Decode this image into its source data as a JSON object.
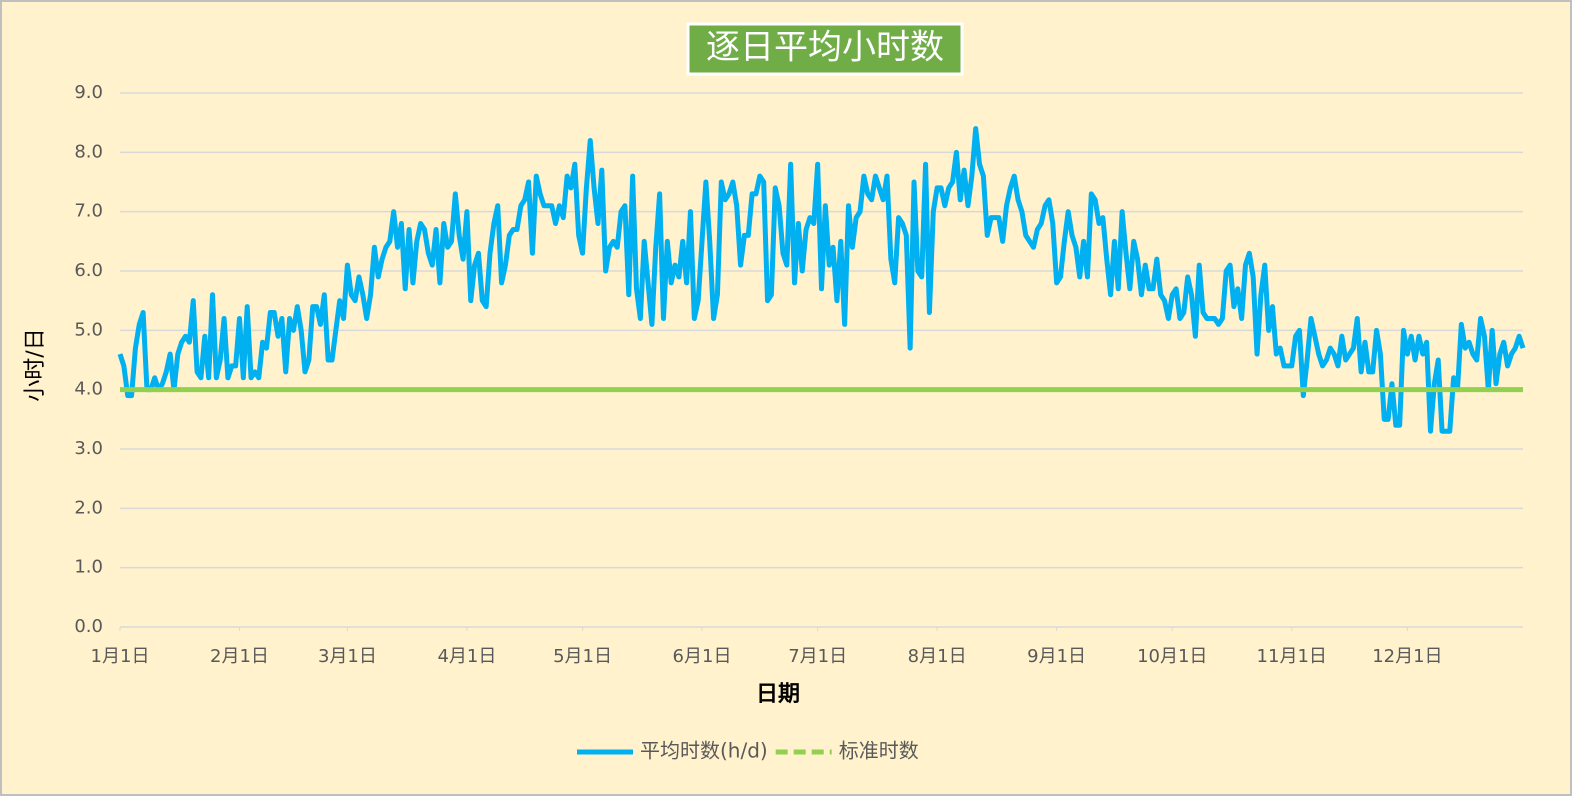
{
  "chart_data": {
    "type": "line",
    "title": "逐日平均小时数",
    "xlabel": "日期",
    "ylabel": "小时/日",
    "background": "#fff2cc",
    "grid": true,
    "legend": "bottom",
    "xlim": [
      1,
      365
    ],
    "xticks": [
      {
        "value": 1,
        "label": "1月1日"
      },
      {
        "value": 32,
        "label": "2月1日"
      },
      {
        "value": 60,
        "label": "3月1日"
      },
      {
        "value": 91,
        "label": "4月1日"
      },
      {
        "value": 121,
        "label": "5月1日"
      },
      {
        "value": 152,
        "label": "6月1日"
      },
      {
        "value": 182,
        "label": "7月1日"
      },
      {
        "value": 213,
        "label": "8月1日"
      },
      {
        "value": 244,
        "label": "9月1日"
      },
      {
        "value": 274,
        "label": "10月1日"
      },
      {
        "value": 305,
        "label": "11月1日"
      },
      {
        "value": 335,
        "label": "12月1日"
      }
    ],
    "ylim": [
      0,
      9
    ],
    "yticks": [
      {
        "value": 0,
        "label": "0.0"
      },
      {
        "value": 1,
        "label": "1.0"
      },
      {
        "value": 2,
        "label": "2.0"
      },
      {
        "value": 3,
        "label": "3.0"
      },
      {
        "value": 4,
        "label": "4.0"
      },
      {
        "value": 5,
        "label": "5.0"
      },
      {
        "value": 6,
        "label": "6.0"
      },
      {
        "value": 7,
        "label": "7.0"
      },
      {
        "value": 8,
        "label": "8.0"
      },
      {
        "value": 9,
        "label": "9.0"
      }
    ],
    "series": [
      {
        "name": "平均时数(h/d)",
        "color": "#00b0f0",
        "dash": false,
        "x": [
          1,
          2,
          3,
          4,
          5,
          6,
          7,
          8,
          9,
          10,
          11,
          12,
          13,
          14,
          15,
          16,
          17,
          18,
          19,
          20,
          21,
          22,
          23,
          24,
          25,
          26,
          27,
          28,
          29,
          30,
          31,
          32,
          33,
          34,
          35,
          36,
          37,
          38,
          39,
          40,
          41,
          42,
          43,
          44,
          45,
          46,
          47,
          48,
          49,
          50,
          51,
          52,
          53,
          54,
          55,
          56,
          57,
          58,
          59,
          60,
          61,
          62,
          63,
          64,
          65,
          66,
          67,
          68,
          69,
          70,
          71,
          72,
          73,
          74,
          75,
          76,
          77,
          78,
          79,
          80,
          81,
          82,
          83,
          84,
          85,
          86,
          87,
          88,
          89,
          90,
          91,
          92,
          93,
          94,
          95,
          96,
          97,
          98,
          99,
          100,
          101,
          102,
          103,
          104,
          105,
          106,
          107,
          108,
          109,
          110,
          111,
          112,
          113,
          114,
          115,
          116,
          117,
          118,
          119,
          120,
          121,
          122,
          123,
          124,
          125,
          126,
          127,
          128,
          129,
          130,
          131,
          132,
          133,
          134,
          135,
          136,
          137,
          138,
          139,
          140,
          141,
          142,
          143,
          144,
          145,
          146,
          147,
          148,
          149,
          150,
          151,
          152,
          153,
          154,
          155,
          156,
          157,
          158,
          159,
          160,
          161,
          162,
          163,
          164,
          165,
          166,
          167,
          168,
          169,
          170,
          171,
          172,
          173,
          174,
          175,
          176,
          177,
          178,
          179,
          180,
          181,
          182,
          183,
          184,
          185,
          186,
          187,
          188,
          189,
          190,
          191,
          192,
          193,
          194,
          195,
          196,
          197,
          198,
          199,
          200,
          201,
          202,
          203,
          204,
          205,
          206,
          207,
          208,
          209,
          210,
          211,
          212,
          213,
          214,
          215,
          216,
          217,
          218,
          219,
          220,
          221,
          222,
          223,
          224,
          225,
          226,
          227,
          228,
          229,
          230,
          231,
          232,
          233,
          234,
          235,
          236,
          237,
          238,
          239,
          240,
          241,
          242,
          243,
          244,
          245,
          246,
          247,
          248,
          249,
          250,
          251,
          252,
          253,
          254,
          255,
          256,
          257,
          258,
          259,
          260,
          261,
          262,
          263,
          264,
          265,
          266,
          267,
          268,
          269,
          270,
          271,
          272,
          273,
          274,
          275,
          276,
          277,
          278,
          279,
          280,
          281,
          282,
          283,
          284,
          285,
          286,
          287,
          288,
          289,
          290,
          291,
          292,
          293,
          294,
          295,
          296,
          297,
          298,
          299,
          300,
          301,
          302,
          303,
          304,
          305,
          306,
          307,
          308,
          309,
          310,
          311,
          312,
          313,
          314,
          315,
          316,
          317,
          318,
          319,
          320,
          321,
          322,
          323,
          324,
          325,
          326,
          327,
          328,
          329,
          330,
          331,
          332,
          333,
          334,
          335,
          336,
          337,
          338,
          339,
          340,
          341,
          342,
          343,
          344,
          345,
          346,
          347,
          348,
          349,
          350,
          351,
          352,
          353,
          354,
          355,
          356,
          357,
          358,
          359,
          360,
          361,
          362,
          363,
          364,
          365
        ],
        "values": [
          4.6,
          4.4,
          3.9,
          3.9,
          4.7,
          5.1,
          5.3,
          4.0,
          4.0,
          4.2,
          4.0,
          4.1,
          4.3,
          4.6,
          4.0,
          4.6,
          4.8,
          4.9,
          4.8,
          5.5,
          4.3,
          4.2,
          4.9,
          4.2,
          5.6,
          4.2,
          4.5,
          5.2,
          4.2,
          4.4,
          4.4,
          5.2,
          4.2,
          5.4,
          4.2,
          4.3,
          4.2,
          4.8,
          4.7,
          5.3,
          5.3,
          4.9,
          5.2,
          4.3,
          5.2,
          5.0,
          5.4,
          5.0,
          4.3,
          4.5,
          5.4,
          5.4,
          5.1,
          5.6,
          4.5,
          4.5,
          5.0,
          5.5,
          5.2,
          6.1,
          5.6,
          5.5,
          5.9,
          5.6,
          5.2,
          5.6,
          6.4,
          5.9,
          6.2,
          6.4,
          6.5,
          7.0,
          6.4,
          6.8,
          5.7,
          6.7,
          5.8,
          6.5,
          6.8,
          6.7,
          6.3,
          6.1,
          6.7,
          5.8,
          6.8,
          6.4,
          6.5,
          7.3,
          6.6,
          6.2,
          7.0,
          5.5,
          6.1,
          6.3,
          5.5,
          5.4,
          6.3,
          6.8,
          7.1,
          5.8,
          6.1,
          6.6,
          6.7,
          6.7,
          7.1,
          7.2,
          7.5,
          6.3,
          7.6,
          7.3,
          7.1,
          7.1,
          7.1,
          6.8,
          7.1,
          6.9,
          7.6,
          7.4,
          7.8,
          6.6,
          6.3,
          7.4,
          8.2,
          7.4,
          6.8,
          7.7,
          6.0,
          6.4,
          6.5,
          6.4,
          7.0,
          7.1,
          5.6,
          7.6,
          5.7,
          5.2,
          6.5,
          5.8,
          5.1,
          6.4,
          7.3,
          5.2,
          6.5,
          5.8,
          6.1,
          5.9,
          6.5,
          5.8,
          7.0,
          5.2,
          5.5,
          6.5,
          7.5,
          6.5,
          5.2,
          5.6,
          7.5,
          7.2,
          7.3,
          7.5,
          7.1,
          6.1,
          6.6,
          6.6,
          7.3,
          7.3,
          7.6,
          7.5,
          5.5,
          5.6,
          7.4,
          7.1,
          6.3,
          6.1,
          7.8,
          5.8,
          6.8,
          6.0,
          6.7,
          6.9,
          6.8,
          7.8,
          5.7,
          7.1,
          6.1,
          6.4,
          5.5,
          6.5,
          5.1,
          7.1,
          6.4,
          6.9,
          7.0,
          7.6,
          7.3,
          7.2,
          7.6,
          7.4,
          7.2,
          7.6,
          6.2,
          5.8,
          6.9,
          6.8,
          6.6,
          4.7,
          7.5,
          6.0,
          5.9,
          7.8,
          5.3,
          7.0,
          7.4,
          7.4,
          7.1,
          7.4,
          7.5,
          8.0,
          7.2,
          7.7,
          7.1,
          7.6,
          8.4,
          7.8,
          7.6,
          6.6,
          6.9,
          6.9,
          6.9,
          6.5,
          7.1,
          7.4,
          7.6,
          7.2,
          7.0,
          6.6,
          6.5,
          6.4,
          6.7,
          6.8,
          7.1,
          7.2,
          6.8,
          5.8,
          5.9,
          6.5,
          7.0,
          6.6,
          6.4,
          5.9,
          6.5,
          5.9,
          7.3,
          7.2,
          6.8,
          6.9,
          6.2,
          5.6,
          6.5,
          5.7,
          7.0,
          6.3,
          5.7,
          6.5,
          6.2,
          5.6,
          6.1,
          5.7,
          5.7,
          6.2,
          5.6,
          5.5,
          5.2,
          5.6,
          5.7,
          5.2,
          5.3,
          5.9,
          5.6,
          4.9,
          6.1,
          5.3,
          5.2,
          5.2,
          5.2,
          5.1,
          5.2,
          6.0,
          6.1,
          5.4,
          5.7,
          5.2,
          6.1,
          6.3,
          5.9,
          4.6,
          5.6,
          6.1,
          5.0,
          5.4,
          4.6,
          4.7,
          4.4,
          4.4,
          4.4,
          4.9,
          5.0,
          3.9,
          4.5,
          5.2,
          4.9,
          4.6,
          4.4,
          4.5,
          4.7,
          4.6,
          4.4,
          4.9,
          4.5,
          4.6,
          4.7,
          5.2,
          4.3,
          4.8,
          4.3,
          4.3,
          5.0,
          4.6,
          3.5,
          3.5,
          4.1,
          3.4,
          3.4,
          5.0,
          4.6,
          4.9,
          4.5,
          4.9,
          4.6,
          4.8,
          3.3,
          4.1,
          4.5,
          3.3,
          3.3,
          3.3,
          4.2,
          4.0,
          5.1,
          4.7,
          4.8,
          4.6,
          4.5,
          5.2,
          4.9,
          4.0,
          5.0,
          4.1,
          4.6,
          4.8,
          4.4,
          4.6,
          4.7,
          4.9,
          4.7
        ]
      },
      {
        "name": "标准时数",
        "color": "#92d050",
        "dash": true,
        "x": [
          1,
          365
        ],
        "values": [
          4.0,
          4.0
        ]
      }
    ]
  }
}
